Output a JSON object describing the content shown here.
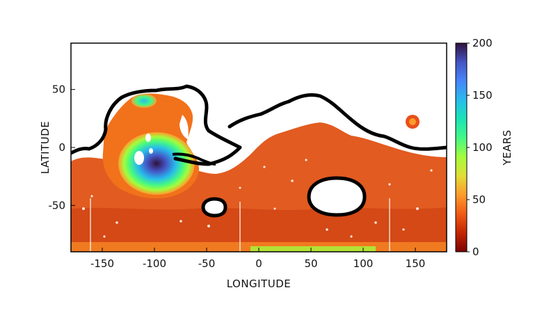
{
  "chart_data": {
    "type": "heatmap",
    "title": "",
    "xlabel": "LONGITUDE",
    "ylabel": "LATITUDE",
    "colorbar_label": "YEARS",
    "xlim": [
      -180,
      180
    ],
    "ylim": [
      -90,
      90
    ],
    "x_ticks": [
      -150,
      -100,
      -50,
      0,
      50,
      100,
      150
    ],
    "y_ticks": [
      50,
      0,
      -50
    ],
    "colorbar_range": [
      0,
      200
    ],
    "colorbar_ticks": [
      200,
      150,
      100,
      50,
      0
    ],
    "colormap": [
      "#7a0403",
      "#c42503",
      "#f05b12",
      "#fe9b2d",
      "#e1dd37",
      "#a4fc3c",
      "#46f884",
      "#1ae4b6",
      "#28bceb",
      "#4686fb",
      "#4454c4",
      "#30123b"
    ],
    "background_color": "#e05a22",
    "no_data_color": "#ffffff",
    "contour_color": "#000000"
  }
}
